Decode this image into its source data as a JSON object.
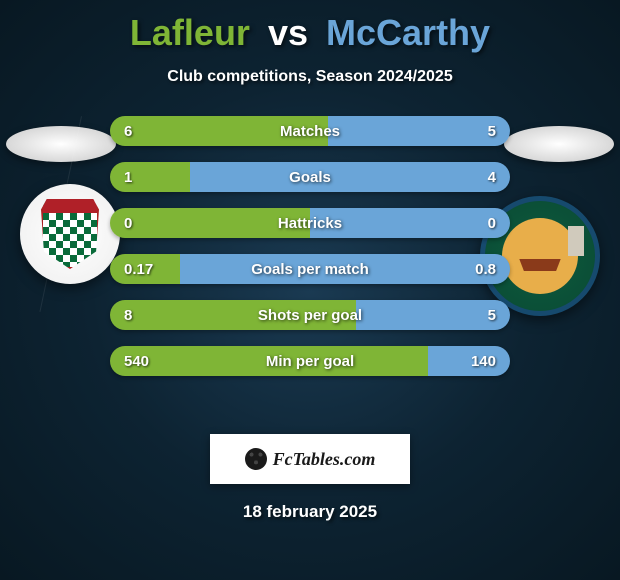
{
  "title": {
    "player1": "Lafleur",
    "vs": "vs",
    "player2": "McCarthy",
    "player1_color": "#7fb536",
    "vs_color": "#ffffff",
    "player2_color": "#6aa5d8"
  },
  "subtitle": "Club competitions, Season 2024/2025",
  "colors": {
    "left": "#7fb536",
    "right": "#6aa5d8",
    "bg_dark": "#081822"
  },
  "stats": [
    {
      "label": "Matches",
      "left_val": "6",
      "right_val": "5",
      "left_pct": 54.5,
      "right_pct": 45.5
    },
    {
      "label": "Goals",
      "left_val": "1",
      "right_val": "4",
      "left_pct": 20.0,
      "right_pct": 80.0
    },
    {
      "label": "Hattricks",
      "left_val": "0",
      "right_val": "0",
      "left_pct": 50.0,
      "right_pct": 50.0
    },
    {
      "label": "Goals per match",
      "left_val": "0.17",
      "right_val": "0.8",
      "left_pct": 17.5,
      "right_pct": 82.5
    },
    {
      "label": "Shots per goal",
      "left_val": "8",
      "right_val": "5",
      "left_pct": 61.5,
      "right_pct": 38.5
    },
    {
      "label": "Min per goal",
      "left_val": "540",
      "right_val": "140",
      "left_pct": 79.4,
      "right_pct": 20.6
    }
  ],
  "brand": "FcTables.com",
  "date": "18 february 2025"
}
